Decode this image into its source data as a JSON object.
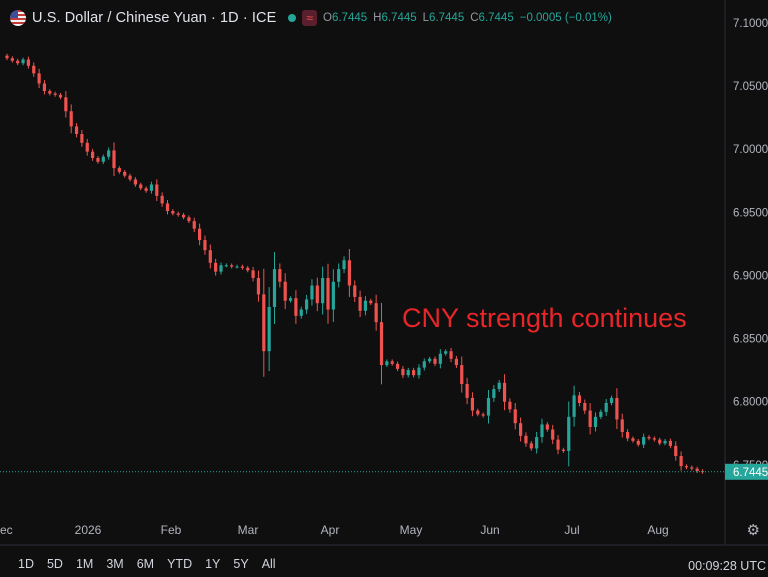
{
  "header": {
    "title": "U.S. Dollar / Chinese Yuan · 1D · ICE",
    "indicator_glyph": "≈",
    "ohlc": [
      {
        "k": "O",
        "v": "6.7445"
      },
      {
        "k": "H",
        "v": "6.7445"
      },
      {
        "k": "L",
        "v": "6.7445"
      },
      {
        "k": "C",
        "v": "6.7445"
      }
    ],
    "change": "−0.0005 (−0.01%)"
  },
  "annotation": "CNY strength continues",
  "timeframes": [
    "1D",
    "5D",
    "1M",
    "3M",
    "6M",
    "YTD",
    "1Y",
    "5Y",
    "All"
  ],
  "clock": "00:09:28 UTC",
  "colors": {
    "up": "#26a69a",
    "down": "#ef5350",
    "background": "#0f0f0f",
    "annotation": "#e8262a"
  },
  "icons": {
    "flag": "us-flag-icon",
    "settings": "gear-icon"
  },
  "chart_data": {
    "type": "candlestick",
    "y_ticks": [
      "7.1000",
      "7.0500",
      "7.0000",
      "6.9500",
      "6.9000",
      "6.8500",
      "6.8000",
      "6.7500"
    ],
    "x_ticks": [
      "ec",
      "2026",
      "Feb",
      "Mar",
      "Apr",
      "May",
      "Jun",
      "Jul",
      "Aug"
    ],
    "ylim": [
      6.72,
      7.11
    ],
    "last_price": "6.7445",
    "grid": false,
    "close": [
      7.072,
      7.07,
      7.068,
      7.071,
      7.066,
      7.06,
      7.052,
      7.046,
      7.044,
      7.043,
      7.041,
      7.03,
      7.018,
      7.012,
      7.005,
      6.998,
      6.993,
      6.99,
      6.994,
      6.999,
      6.985,
      6.982,
      6.979,
      6.976,
      6.972,
      6.969,
      6.967,
      6.972,
      6.963,
      6.957,
      6.951,
      6.949,
      6.948,
      6.946,
      6.943,
      6.937,
      6.928,
      6.92,
      6.91,
      6.903,
      6.908,
      6.908,
      6.907,
      6.907,
      6.906,
      6.904,
      6.898,
      6.885,
      6.84,
      6.875,
      6.905,
      6.895,
      6.88,
      6.882,
      6.868,
      6.873,
      6.881,
      6.892,
      6.878,
      6.898,
      6.873,
      6.895,
      6.905,
      6.912,
      6.892,
      6.883,
      6.872,
      6.88,
      6.878,
      6.863,
      6.829,
      6.832,
      6.83,
      6.826,
      6.821,
      6.825,
      6.821,
      6.827,
      6.832,
      6.834,
      6.83,
      6.838,
      6.84,
      6.834,
      6.829,
      6.814,
      6.803,
      6.793,
      6.79,
      6.789,
      6.803,
      6.81,
      6.815,
      6.8,
      6.794,
      6.783,
      6.773,
      6.767,
      6.763,
      6.772,
      6.782,
      6.778,
      6.77,
      6.762,
      6.761,
      6.788,
      6.805,
      6.799,
      6.793,
      6.78,
      6.788,
      6.792,
      6.799,
      6.803,
      6.786,
      6.776,
      6.771,
      6.769,
      6.766,
      6.772,
      6.771,
      6.77,
      6.767,
      6.769,
      6.765,
      6.757,
      6.749,
      6.748,
      6.747,
      6.745,
      6.7445
    ]
  }
}
